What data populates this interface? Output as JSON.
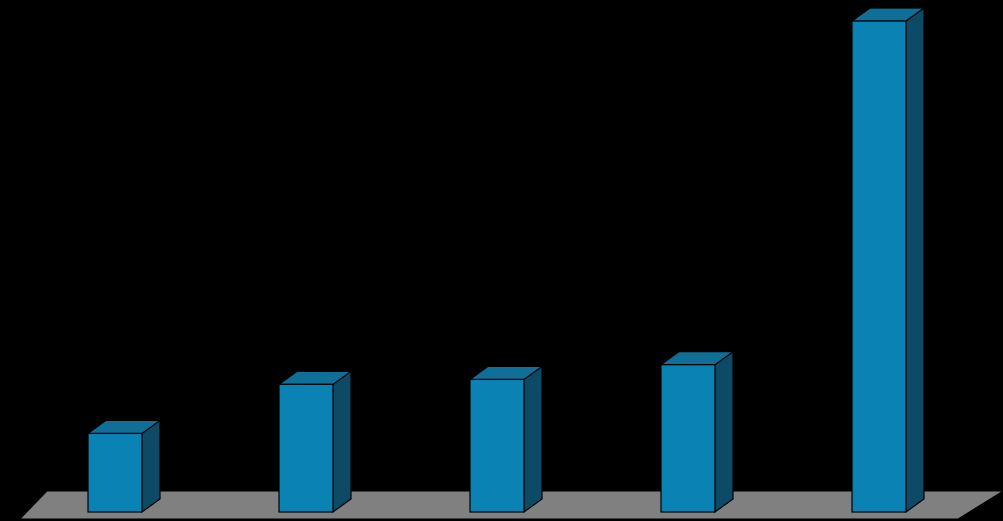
{
  "chart_data": {
    "type": "bar",
    "style": "3d-column",
    "categories": [
      "",
      "",
      "",
      "",
      ""
    ],
    "values": [
      16,
      26,
      27,
      30,
      100
    ],
    "ylim": [
      0,
      100
    ],
    "grid": false,
    "legend": "none",
    "colors": {
      "background": "#000000",
      "bar_front": "#0a82b4",
      "bar_top": "#0f6f98",
      "bar_side": "#0c4a66",
      "floor": "#808080",
      "edge": "#000000"
    }
  }
}
